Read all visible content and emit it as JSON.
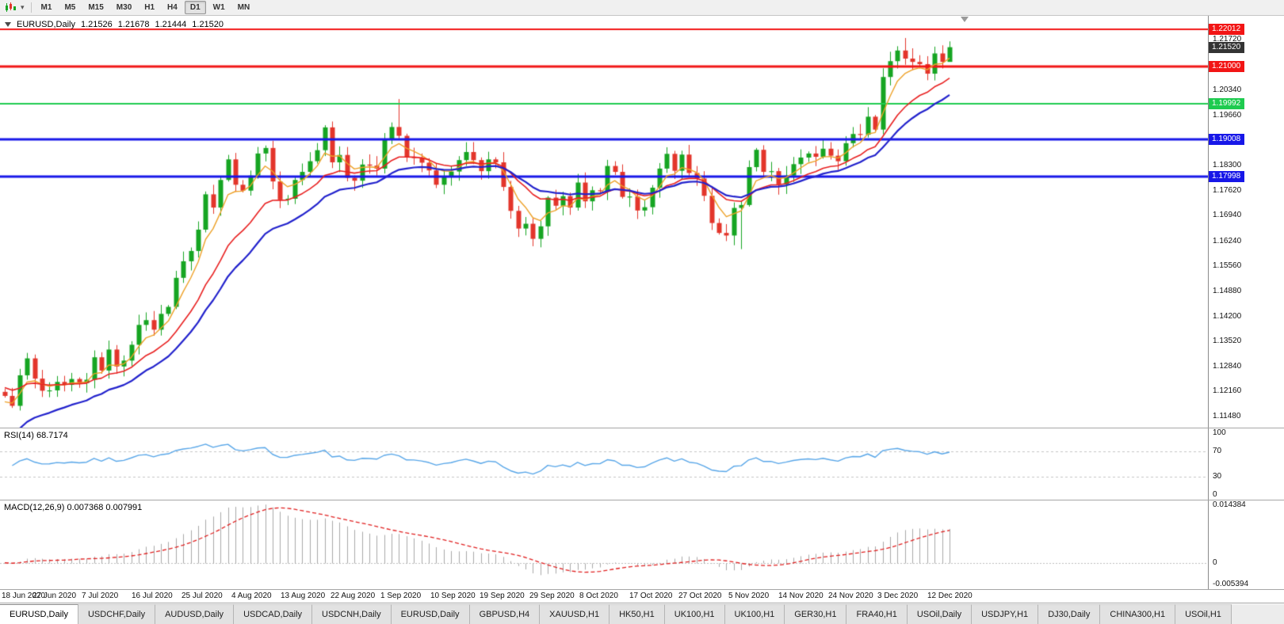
{
  "toolbar": {
    "timeframes": [
      "M1",
      "M5",
      "M15",
      "M30",
      "H1",
      "H4",
      "D1",
      "W1",
      "MN"
    ],
    "active_timeframe": "D1"
  },
  "chart_header": {
    "symbol_period": "EURUSD,Daily",
    "open": "1.21526",
    "high": "1.21678",
    "low": "1.21444",
    "close": "1.21520"
  },
  "rsi": {
    "label": "RSI(14) 68.7174",
    "period": 14,
    "last_value": 68.7174,
    "line_color": "#58a6e8",
    "axis_labels": [
      {
        "text": "100",
        "value": 100
      },
      {
        "text": "70",
        "value": 70
      },
      {
        "text": "30",
        "value": 30
      },
      {
        "text": "0",
        "value": 0
      }
    ]
  },
  "macd": {
    "label": "MACD(12,26,9) 0.007368 0.007991",
    "fast": 12,
    "slow": 26,
    "signal": 9,
    "macd_value": 0.007368,
    "signal_value": 0.007991,
    "max": 0.014384,
    "min": -0.005394,
    "histogram_color": "#a8a8a8",
    "signal_color": "#e02020",
    "axis_labels": [
      {
        "text": "0.014384",
        "value": 0.014384
      },
      {
        "text": "0",
        "value": 0
      },
      {
        "text": "-0.005394",
        "value": -0.005394
      }
    ]
  },
  "tabs": {
    "active_index": 0,
    "items": [
      "EURUSD,Daily",
      "USDCHF,Daily",
      "AUDUSD,Daily",
      "USDCAD,Daily",
      "USDCNH,Daily",
      "EURUSD,Daily",
      "GBPUSD,H4",
      "XAUUSD,H1",
      "HK50,H1",
      "UK100,H1",
      "UK100,H1",
      "GER30,H1",
      "FRA40,H1",
      "USOil,Daily",
      "USDJPY,H1",
      "DJ30,Daily",
      "CHINA300,H1",
      "USOil,H1"
    ]
  },
  "chart_data": {
    "type": "candlestick",
    "symbol": "EURUSD",
    "timeframe": "Daily",
    "price_max": 1.222,
    "price_min": 1.1135,
    "first_open": 1.1215,
    "colors": {
      "bull": "#16a522",
      "bear": "#e3352b"
    },
    "closes": [
      1.1204,
      1.1177,
      1.126,
      1.1306,
      1.1251,
      1.1218,
      1.1219,
      1.1242,
      1.1234,
      1.125,
      1.1239,
      1.1248,
      1.1309,
      1.1273,
      1.133,
      1.1284,
      1.13,
      1.1343,
      1.1397,
      1.141,
      1.1384,
      1.1427,
      1.1446,
      1.1525,
      1.157,
      1.1598,
      1.1656,
      1.1752,
      1.1716,
      1.1791,
      1.1847,
      1.1778,
      1.1762,
      1.1803,
      1.1863,
      1.1878,
      1.1787,
      1.1738,
      1.174,
      1.1791,
      1.1813,
      1.1842,
      1.1872,
      1.1934,
      1.1839,
      1.1859,
      1.1797,
      1.1789,
      1.1833,
      1.183,
      1.1822,
      1.1903,
      1.1935,
      1.1911,
      1.1853,
      1.1852,
      1.1838,
      1.1817,
      1.1778,
      1.1801,
      1.1814,
      1.1845,
      1.1867,
      1.1845,
      1.1815,
      1.1847,
      1.1839,
      1.1772,
      1.1707,
      1.1659,
      1.1672,
      1.1631,
      1.1665,
      1.1743,
      1.1721,
      1.1747,
      1.1716,
      1.1784,
      1.1733,
      1.1763,
      1.1761,
      1.1829,
      1.1813,
      1.1745,
      1.1746,
      1.1708,
      1.1717,
      1.177,
      1.1822,
      1.1862,
      1.1816,
      1.186,
      1.181,
      1.1795,
      1.1748,
      1.1674,
      1.1647,
      1.164,
      1.1715,
      1.1723,
      1.1826,
      1.1873,
      1.1813,
      1.1815,
      1.1779,
      1.1803,
      1.1834,
      1.1852,
      1.1863,
      1.1854,
      1.1876,
      1.1857,
      1.1842,
      1.1891,
      1.1916,
      1.1914,
      1.1963,
      1.1928,
      1.2071,
      1.2114,
      1.2143,
      1.2121,
      1.2112,
      1.2106,
      1.208,
      1.2135,
      1.2112,
      1.2152
    ],
    "wick_overrides": {
      "53": {
        "h": 1.2011
      },
      "99": {
        "l": 1.1603
      },
      "121": {
        "h": 1.2177
      },
      "127": {
        "h": 1.21678,
        "l": 1.21444
      }
    },
    "overlays": [
      {
        "name": "ma-fast",
        "period": 5,
        "seed": 1.118,
        "color": "#eda128",
        "width": 1.4
      },
      {
        "name": "ma-medium",
        "period": 13,
        "seed": 1.123,
        "color": "#e82020",
        "width": 1.6
      },
      {
        "name": "ma-slow",
        "period": 20,
        "seed": 1.108,
        "color": "#2222cc",
        "width": 2.2
      }
    ],
    "levels": [
      {
        "price": 1.22012,
        "color": "#f21515",
        "width": 2
      },
      {
        "price": 1.21,
        "color": "#f21515",
        "width": 3
      },
      {
        "price": 1.19992,
        "color": "#1ecb4f",
        "width": 2
      },
      {
        "price": 1.19008,
        "color": "#1717e8",
        "width": 3
      },
      {
        "price": 1.17998,
        "color": "#1717e8",
        "width": 3
      }
    ],
    "price_axis_labels": [
      {
        "text": "1.21720",
        "price": 1.2172
      },
      {
        "text": "1.20340",
        "price": 1.2034
      },
      {
        "text": "1.19660",
        "price": 1.1966
      },
      {
        "text": "1.18300",
        "price": 1.183
      },
      {
        "text": "1.17620",
        "price": 1.1762
      },
      {
        "text": "1.16940",
        "price": 1.1694
      },
      {
        "text": "1.16240",
        "price": 1.1624
      },
      {
        "text": "1.15560",
        "price": 1.1556
      },
      {
        "text": "1.14880",
        "price": 1.1488
      },
      {
        "text": "1.14200",
        "price": 1.142
      },
      {
        "text": "1.13520",
        "price": 1.1352
      },
      {
        "text": "1.12840",
        "price": 1.1284
      },
      {
        "text": "1.12160",
        "price": 1.1216
      },
      {
        "text": "1.11480",
        "price": 1.1148
      }
    ],
    "price_axis_tags": [
      {
        "text": "1.22012",
        "price": 1.22012,
        "bg": "#f21515",
        "fg": "#ffffff",
        "name": "resistance-level-tag"
      },
      {
        "text": "1.21520",
        "price": 1.2152,
        "bg": "#333333",
        "fg": "#ffffff",
        "name": "current-price-tag"
      },
      {
        "text": "1.21000",
        "price": 1.21,
        "bg": "#f21515",
        "fg": "#ffffff",
        "name": "resistance-level-tag"
      },
      {
        "text": "1.19992",
        "price": 1.19992,
        "bg": "#1ecb4f",
        "fg": "#ffffff",
        "name": "support-level-tag"
      },
      {
        "text": "1.19008",
        "price": 1.19008,
        "bg": "#1717e8",
        "fg": "#ffffff",
        "name": "support-level-tag"
      },
      {
        "text": "1.17998",
        "price": 1.17998,
        "bg": "#1717e8",
        "fg": "#ffffff",
        "name": "support-level-tag"
      }
    ],
    "date_labels": [
      "18 Jun 2020",
      "27 Jun 2020",
      "7 Jul 2020",
      "16 Jul 2020",
      "25 Jul 2020",
      "4 Aug 2020",
      "13 Aug 2020",
      "22 Aug 2020",
      "1 Sep 2020",
      "10 Sep 2020",
      "19 Sep 2020",
      "29 Sep 2020",
      "8 Oct 2020",
      "17 Oct 2020",
      "27 Oct 2020",
      "5 Nov 2020",
      "14 Nov 2020",
      "24 Nov 2020",
      "3 Dec 2020",
      "12 Dec 2020"
    ]
  }
}
